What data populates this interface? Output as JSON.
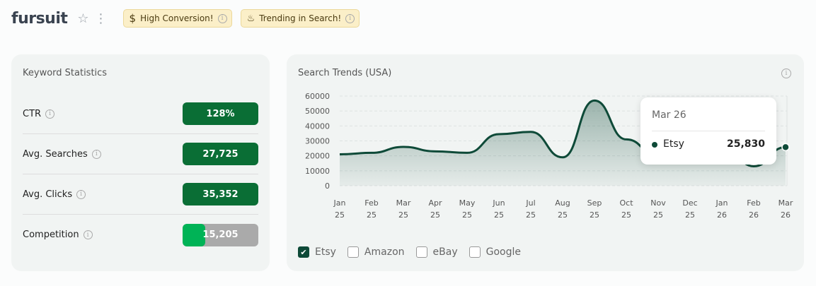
{
  "header": {
    "title": "fursuit",
    "badges": [
      {
        "icon": "dollar-icon",
        "label": "High Conversion!"
      },
      {
        "icon": "flame-icon",
        "label": "Trending in Search!"
      }
    ]
  },
  "keyword_stats": {
    "title": "Keyword Statistics",
    "rows": [
      {
        "label": "CTR",
        "value": "128%"
      },
      {
        "label": "Avg. Searches",
        "value": "27,725"
      },
      {
        "label": "Avg. Clicks",
        "value": "35,352"
      },
      {
        "label": "Competition",
        "value": "15,205",
        "fill_percent": 30
      }
    ]
  },
  "colors": {
    "line": "#0e4a38",
    "pill": "#0a6e35",
    "competition": "#00b356"
  },
  "trends": {
    "title": "Search Trends (USA)",
    "legend": [
      {
        "label": "Etsy",
        "checked": true
      },
      {
        "label": "Amazon",
        "checked": false
      },
      {
        "label": "eBay",
        "checked": false
      },
      {
        "label": "Google",
        "checked": false
      }
    ],
    "tooltip": {
      "date": "Mar 26",
      "series": "Etsy",
      "value": "25,830"
    }
  },
  "chart_data": {
    "type": "area",
    "ylim": [
      0,
      60000
    ],
    "yticks": [
      0,
      10000,
      20000,
      30000,
      40000,
      50000,
      60000
    ],
    "grid": true,
    "categories": [
      [
        "Jan",
        "25"
      ],
      [
        "Feb",
        "25"
      ],
      [
        "Mar",
        "25"
      ],
      [
        "Apr",
        "25"
      ],
      [
        "May",
        "25"
      ],
      [
        "Jun",
        "25"
      ],
      [
        "Jul",
        "25"
      ],
      [
        "Aug",
        "25"
      ],
      [
        "Sep",
        "25"
      ],
      [
        "Oct",
        "25"
      ],
      [
        "Nov",
        "25"
      ],
      [
        "Dec",
        "25"
      ],
      [
        "Jan",
        "26"
      ],
      [
        "Feb",
        "26"
      ],
      [
        "Mar",
        "26"
      ]
    ],
    "series": [
      {
        "name": "Etsy",
        "values": [
          21000,
          22000,
          26000,
          23000,
          22000,
          34500,
          36000,
          19000,
          57000,
          31000,
          19500,
          27500,
          28000,
          13000,
          25830
        ]
      }
    ]
  }
}
